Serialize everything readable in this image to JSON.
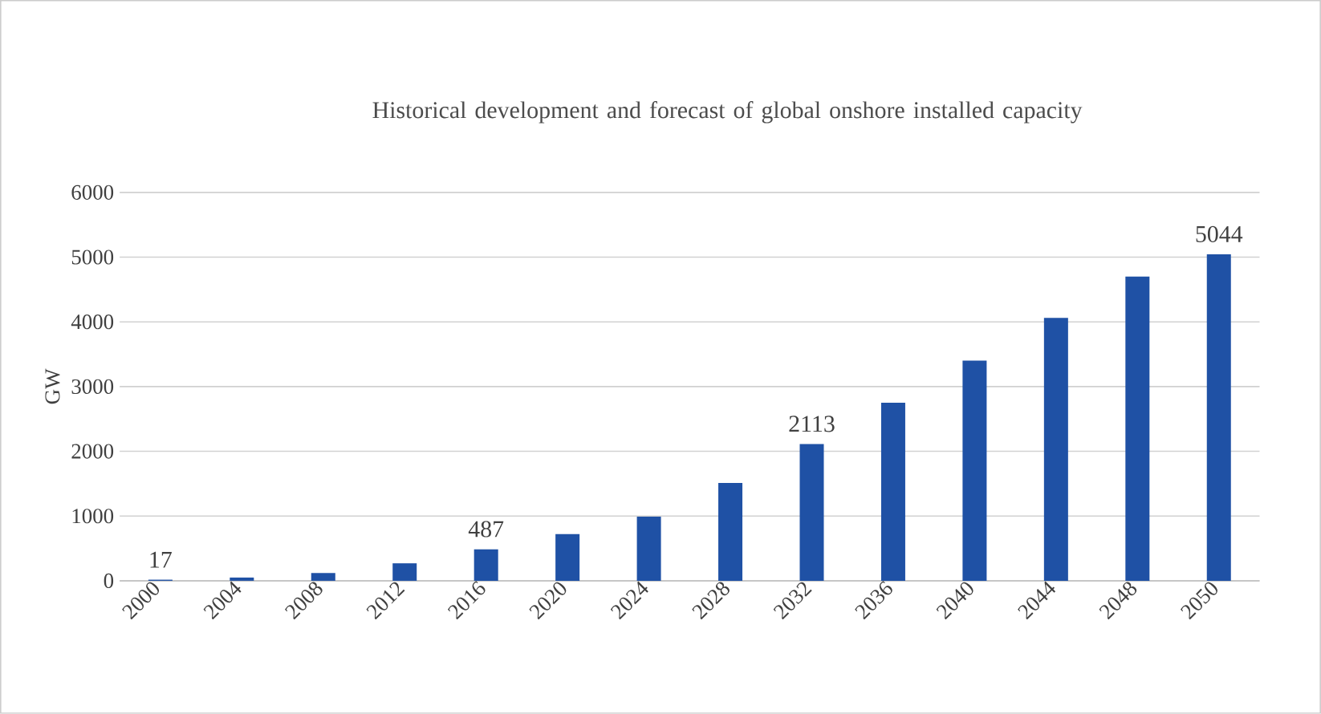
{
  "chart_data": {
    "type": "bar",
    "title": "Historical development and forecast of global onshore installed capacity",
    "ylabel": "GW",
    "categories": [
      "2000",
      "2004",
      "2008",
      "2012",
      "2016",
      "2020",
      "2024",
      "2028",
      "2032",
      "2036",
      "2040",
      "2044",
      "2048",
      "2050"
    ],
    "values": [
      17,
      50,
      120,
      270,
      487,
      720,
      990,
      1510,
      2113,
      2750,
      3400,
      4060,
      4700,
      5044
    ],
    "value_labels": [
      "17",
      null,
      null,
      null,
      "487",
      null,
      null,
      null,
      "2113",
      null,
      null,
      null,
      null,
      "5044"
    ],
    "color": "#1f51a5",
    "ylim": [
      0,
      6000
    ],
    "yticks": [
      0,
      1000,
      2000,
      3000,
      4000,
      5000,
      6000
    ],
    "grid": "y"
  }
}
